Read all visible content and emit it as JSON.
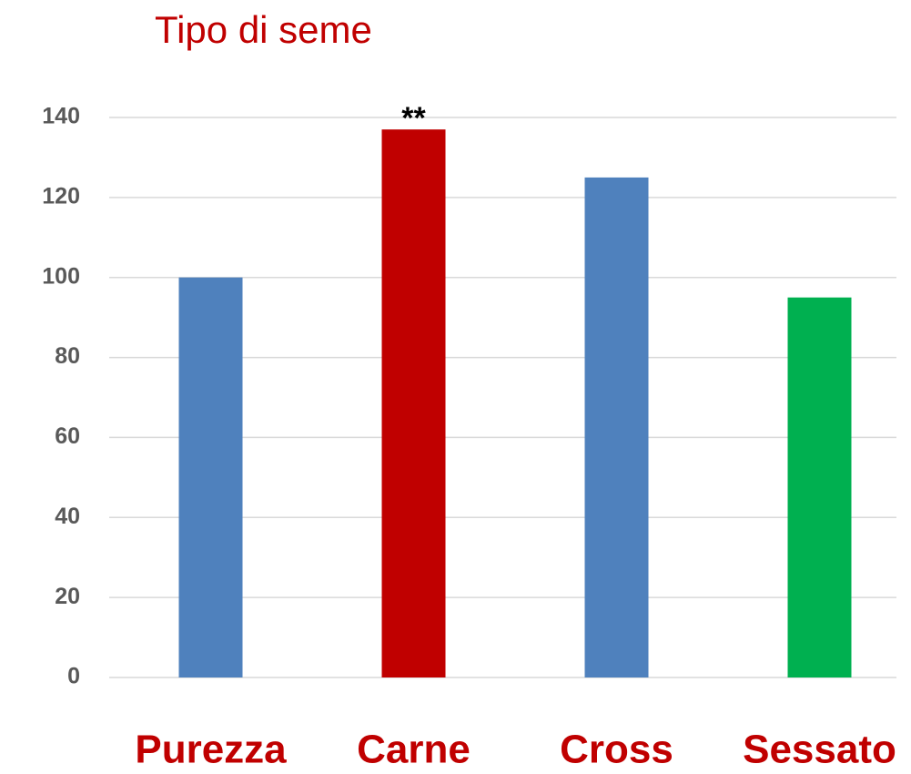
{
  "chart_data": {
    "type": "bar",
    "title": "Tipo di seme",
    "categories": [
      "Purezza",
      "Carne",
      "Cross",
      "Sessato"
    ],
    "values": [
      100,
      137,
      125,
      95
    ],
    "colors": [
      "#4f81bd",
      "#c00000",
      "#4f81bd",
      "#00b050"
    ],
    "ylim": [
      0,
      140
    ],
    "yticks": [
      0,
      20,
      40,
      60,
      80,
      100,
      120,
      140
    ],
    "grid": true,
    "annotations": [
      {
        "text": "**",
        "category": "Carne"
      }
    ]
  }
}
